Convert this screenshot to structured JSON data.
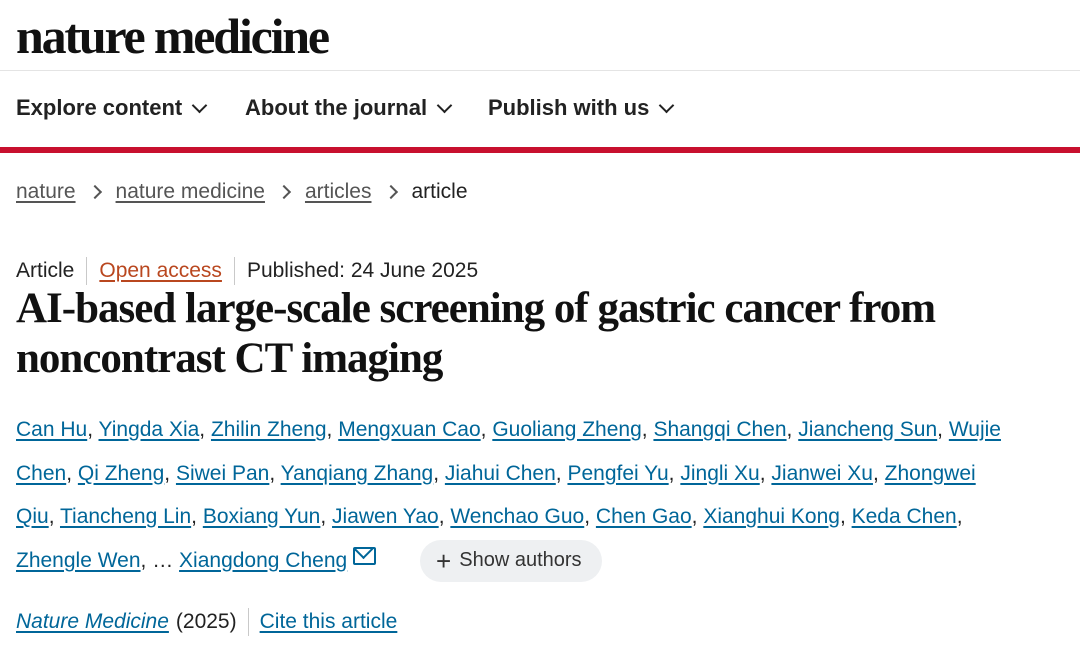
{
  "header": {
    "logo": "nature medicine"
  },
  "nav": {
    "items": [
      {
        "label": "Explore content",
        "icon": "chevron-down-icon"
      },
      {
        "label": "About the journal",
        "icon": "chevron-down-icon"
      },
      {
        "label": "Publish with us",
        "icon": "chevron-down-icon"
      }
    ],
    "accent_color": "#c8102e"
  },
  "breadcrumb": {
    "items": [
      "nature",
      "nature medicine",
      "articles"
    ],
    "current": "article"
  },
  "article": {
    "type": "Article",
    "access": "Open access",
    "published": "Published: 24 June 2025",
    "title": "AI-based large-scale screening of gastric cancer from noncontrast CT imaging",
    "authors": [
      "Can Hu",
      "Yingda Xia",
      "Zhilin Zheng",
      "Mengxuan Cao",
      "Guoliang Zheng",
      "Shangqi Chen",
      "Jiancheng Sun",
      "Wujie Chen",
      "Qi Zheng",
      "Siwei Pan",
      "Yanqiang Zhang",
      "Jiahui Chen",
      "Pengfei Yu",
      "Jingli Xu",
      "Jianwei Xu",
      "Zhongwei Qiu",
      "Tiancheng Lin",
      "Boxiang Yun",
      "Jiawen Yao",
      "Wenchao Guo",
      "Chen Gao",
      "Xianghui Kong",
      "Keda Chen",
      "Zhengle Wen"
    ],
    "ellipsis": "…",
    "corresponding_author": "Xiangdong Cheng",
    "show_authors": "Show authors",
    "journal": "Nature Medicine",
    "year": "(2025)",
    "cite": "Cite this article"
  }
}
